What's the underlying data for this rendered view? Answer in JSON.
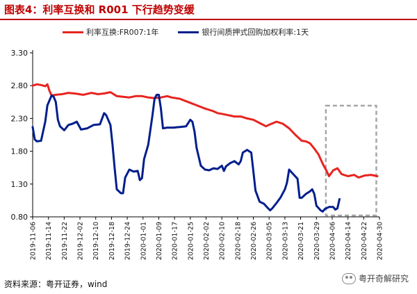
{
  "title": "图表4：利率互换和 R001 下行趋势变缓",
  "source": "资料来源：粤开证券，wind",
  "watermark": "粤开奇解研究",
  "colors": {
    "title": "#c00000",
    "irs": "#e8231f",
    "r001": "#001e8c",
    "highlight_box": "#a6a6a6"
  },
  "chart_data": {
    "type": "line",
    "ylim": [
      0.8,
      3.3
    ],
    "yticks": [
      "3.30",
      "2.80",
      "2.30",
      "1.80",
      "1.30",
      "0.80"
    ],
    "x_ticks": [
      "2019-11-06",
      "2019-11-14",
      "2019-11-22",
      "2019-12-02",
      "2019-12-10",
      "2019-12-18",
      "2019-12-24",
      "2020-01-01",
      "2020-01-09",
      "2020-01-17",
      "2020-01-25",
      "2020-02-02",
      "2020-02-10",
      "2020-02-18",
      "2020-02-26",
      "2020-03-05",
      "2020-03-13",
      "2020-03-21",
      "2020-03-29",
      "2020-04-06",
      "2020-04-14",
      "2020-04-22",
      "2020-04-30"
    ],
    "grid": false,
    "legend": "top",
    "highlight": {
      "x_from": "2020-04-07",
      "x_to": "2020-04-30"
    },
    "series": [
      {
        "name": "利率互换:FR007:1年",
        "color_key": "irs",
        "points": [
          [
            0,
            2.8
          ],
          [
            2,
            2.82
          ],
          [
            4,
            2.81
          ],
          [
            6,
            2.79
          ],
          [
            7,
            2.82
          ],
          [
            8,
            2.72
          ],
          [
            9,
            2.65
          ],
          [
            11,
            2.66
          ],
          [
            14,
            2.67
          ],
          [
            17,
            2.69
          ],
          [
            20,
            2.68
          ],
          [
            24,
            2.66
          ],
          [
            28,
            2.69
          ],
          [
            31,
            2.67
          ],
          [
            34,
            2.68
          ],
          [
            37,
            2.7
          ],
          [
            40,
            2.64
          ],
          [
            43,
            2.63
          ],
          [
            46,
            2.62
          ],
          [
            49,
            2.64
          ],
          [
            52,
            2.64
          ],
          [
            55,
            2.62
          ],
          [
            58,
            2.61
          ],
          [
            61,
            2.62
          ],
          [
            64,
            2.64
          ],
          [
            66,
            2.62
          ],
          [
            70,
            2.6
          ],
          [
            74,
            2.55
          ],
          [
            78,
            2.5
          ],
          [
            82,
            2.45
          ],
          [
            86,
            2.41
          ],
          [
            88,
            2.38
          ],
          [
            90,
            2.37
          ],
          [
            93,
            2.35
          ],
          [
            96,
            2.33
          ],
          [
            99,
            2.33
          ],
          [
            102,
            2.3
          ],
          [
            105,
            2.28
          ],
          [
            108,
            2.23
          ],
          [
            111,
            2.18
          ],
          [
            113,
            2.21
          ],
          [
            116,
            2.25
          ],
          [
            119,
            2.22
          ],
          [
            122,
            2.15
          ],
          [
            125,
            2.05
          ],
          [
            128,
            1.96
          ],
          [
            130,
            1.95
          ],
          [
            132,
            1.92
          ],
          [
            134,
            1.84
          ],
          [
            136,
            1.75
          ],
          [
            138,
            1.61
          ],
          [
            140,
            1.49
          ],
          [
            141,
            1.42
          ],
          [
            143,
            1.51
          ],
          [
            145,
            1.54
          ],
          [
            147,
            1.45
          ],
          [
            150,
            1.42
          ],
          [
            153,
            1.44
          ],
          [
            155,
            1.4
          ],
          [
            158,
            1.43
          ],
          [
            161,
            1.44
          ],
          [
            164,
            1.42
          ]
        ]
      },
      {
        "name": "银行间质押式回购加权利率:1天",
        "color_key": "r001",
        "points": [
          [
            0,
            2.17
          ],
          [
            1,
            1.98
          ],
          [
            2,
            1.95
          ],
          [
            4,
            1.96
          ],
          [
            6,
            2.25
          ],
          [
            7,
            2.5
          ],
          [
            9,
            2.65
          ],
          [
            10,
            2.63
          ],
          [
            11,
            2.55
          ],
          [
            12,
            2.28
          ],
          [
            13,
            2.18
          ],
          [
            15,
            2.12
          ],
          [
            17,
            2.2
          ],
          [
            19,
            2.22
          ],
          [
            21,
            2.25
          ],
          [
            23,
            2.13
          ],
          [
            26,
            2.15
          ],
          [
            29,
            2.2
          ],
          [
            32,
            2.21
          ],
          [
            34,
            2.38
          ],
          [
            35,
            2.35
          ],
          [
            37,
            2.2
          ],
          [
            38,
            1.9
          ],
          [
            39,
            1.55
          ],
          [
            40,
            1.22
          ],
          [
            42,
            1.16
          ],
          [
            43,
            1.16
          ],
          [
            44,
            1.4
          ],
          [
            46,
            1.52
          ],
          [
            48,
            1.49
          ],
          [
            50,
            1.5
          ],
          [
            51,
            1.36
          ],
          [
            52,
            1.39
          ],
          [
            53,
            1.68
          ],
          [
            55,
            1.9
          ],
          [
            57,
            2.35
          ],
          [
            58,
            2.6
          ],
          [
            59,
            2.66
          ],
          [
            60,
            2.66
          ],
          [
            61,
            2.45
          ],
          [
            62,
            2.15
          ],
          [
            64,
            2.16
          ],
          [
            67,
            2.16
          ],
          [
            70,
            2.17
          ],
          [
            73,
            2.18
          ],
          [
            75,
            2.28
          ],
          [
            76,
            2.25
          ],
          [
            77,
            2.1
          ],
          [
            78,
            1.85
          ],
          [
            80,
            1.58
          ],
          [
            82,
            1.52
          ],
          [
            84,
            1.51
          ],
          [
            86,
            1.54
          ],
          [
            88,
            1.53
          ],
          [
            90,
            1.58
          ],
          [
            91,
            1.5
          ],
          [
            92,
            1.57
          ],
          [
            94,
            1.62
          ],
          [
            96,
            1.65
          ],
          [
            98,
            1.6
          ],
          [
            99,
            1.65
          ],
          [
            100,
            1.78
          ],
          [
            102,
            1.82
          ],
          [
            104,
            1.78
          ],
          [
            105,
            1.5
          ],
          [
            106,
            1.2
          ],
          [
            108,
            1.03
          ],
          [
            110,
            1.0
          ],
          [
            112,
            0.93
          ],
          [
            113,
            0.9
          ],
          [
            114,
            0.93
          ],
          [
            116,
            1.01
          ],
          [
            118,
            1.1
          ],
          [
            120,
            1.22
          ],
          [
            121,
            1.32
          ],
          [
            122,
            1.52
          ],
          [
            124,
            1.45
          ],
          [
            126,
            1.38
          ],
          [
            127,
            1.09
          ],
          [
            128,
            1.09
          ],
          [
            130,
            1.15
          ],
          [
            132,
            1.19
          ],
          [
            133,
            1.22
          ],
          [
            134,
            1.15
          ],
          [
            135,
            0.97
          ],
          [
            137,
            0.9
          ],
          [
            138,
            0.88
          ],
          [
            139,
            0.92
          ],
          [
            141,
            0.95
          ],
          [
            143,
            0.95
          ],
          [
            144,
            0.91
          ],
          [
            145,
            0.93
          ],
          [
            146,
            1.07
          ]
        ]
      }
    ]
  }
}
